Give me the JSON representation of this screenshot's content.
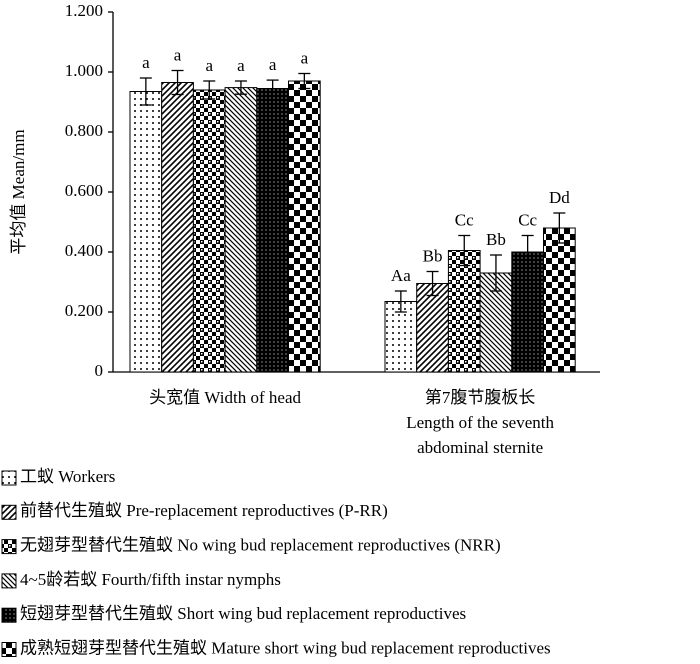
{
  "chart_data": {
    "type": "bar",
    "y_label": "平均值 Mean/mm",
    "categories": [
      [
        "头宽值  Width of head"
      ],
      [
        "第7腹节腹板长",
        "Length of the seventh",
        "abdominal sternite"
      ]
    ],
    "ylim": [
      0,
      1.2
    ],
    "yticks": [
      0,
      {
        "value": 0.2,
        "label": "0.200"
      },
      {
        "value": 0.4,
        "label": "0.400"
      },
      {
        "value": 0.6,
        "label": "0.600"
      },
      {
        "value": 0.8,
        "label": "0.800"
      },
      {
        "value": 1.0,
        "label": "1.000"
      },
      {
        "value": 1.2,
        "label": "1.200"
      }
    ],
    "series": [
      {
        "name": "工蚁 Workers",
        "pattern": "dots",
        "color": "#000000",
        "values": [
          0.935,
          0.235
        ],
        "errors": [
          0.045,
          0.035
        ],
        "significance": [
          "a",
          "Aa"
        ]
      },
      {
        "name": "前替代生殖蚁 Pre-replacement reproductives (P-RR)",
        "pattern": "diag",
        "color": "#000000",
        "values": [
          0.965,
          0.295
        ],
        "errors": [
          0.04,
          0.04
        ],
        "significance": [
          "a",
          "Bb"
        ]
      },
      {
        "name": "无翅芽型替代生殖蚁 No wing bud replacement reproductives (NRR)",
        "pattern": "checksmall",
        "color": "#000000",
        "values": [
          0.94,
          0.405
        ],
        "errors": [
          0.03,
          0.05
        ],
        "significance": [
          "a",
          "Cc"
        ]
      },
      {
        "name": "4~5龄若蚁 Fourth/fifth instar nymphs",
        "pattern": "diag2",
        "color": "#000000",
        "values": [
          0.948,
          0.33
        ],
        "errors": [
          0.022,
          0.06
        ],
        "significance": [
          "a",
          "Bb"
        ]
      },
      {
        "name": "短翅芽型替代生殖蚁 Short wing bud replacement reproductives",
        "pattern": "dark",
        "color": "#000000",
        "values": [
          0.945,
          0.4
        ],
        "errors": [
          0.028,
          0.055
        ],
        "significance": [
          "a",
          "Cc"
        ]
      },
      {
        "name": "成熟短翅芽型替代生殖蚁 Mature short wing bud replacement reproductives",
        "pattern": "checkbig",
        "color": "#000000",
        "values": [
          0.97,
          0.48
        ],
        "errors": [
          0.025,
          0.05
        ],
        "significance": [
          "a",
          "Dd"
        ]
      }
    ]
  }
}
